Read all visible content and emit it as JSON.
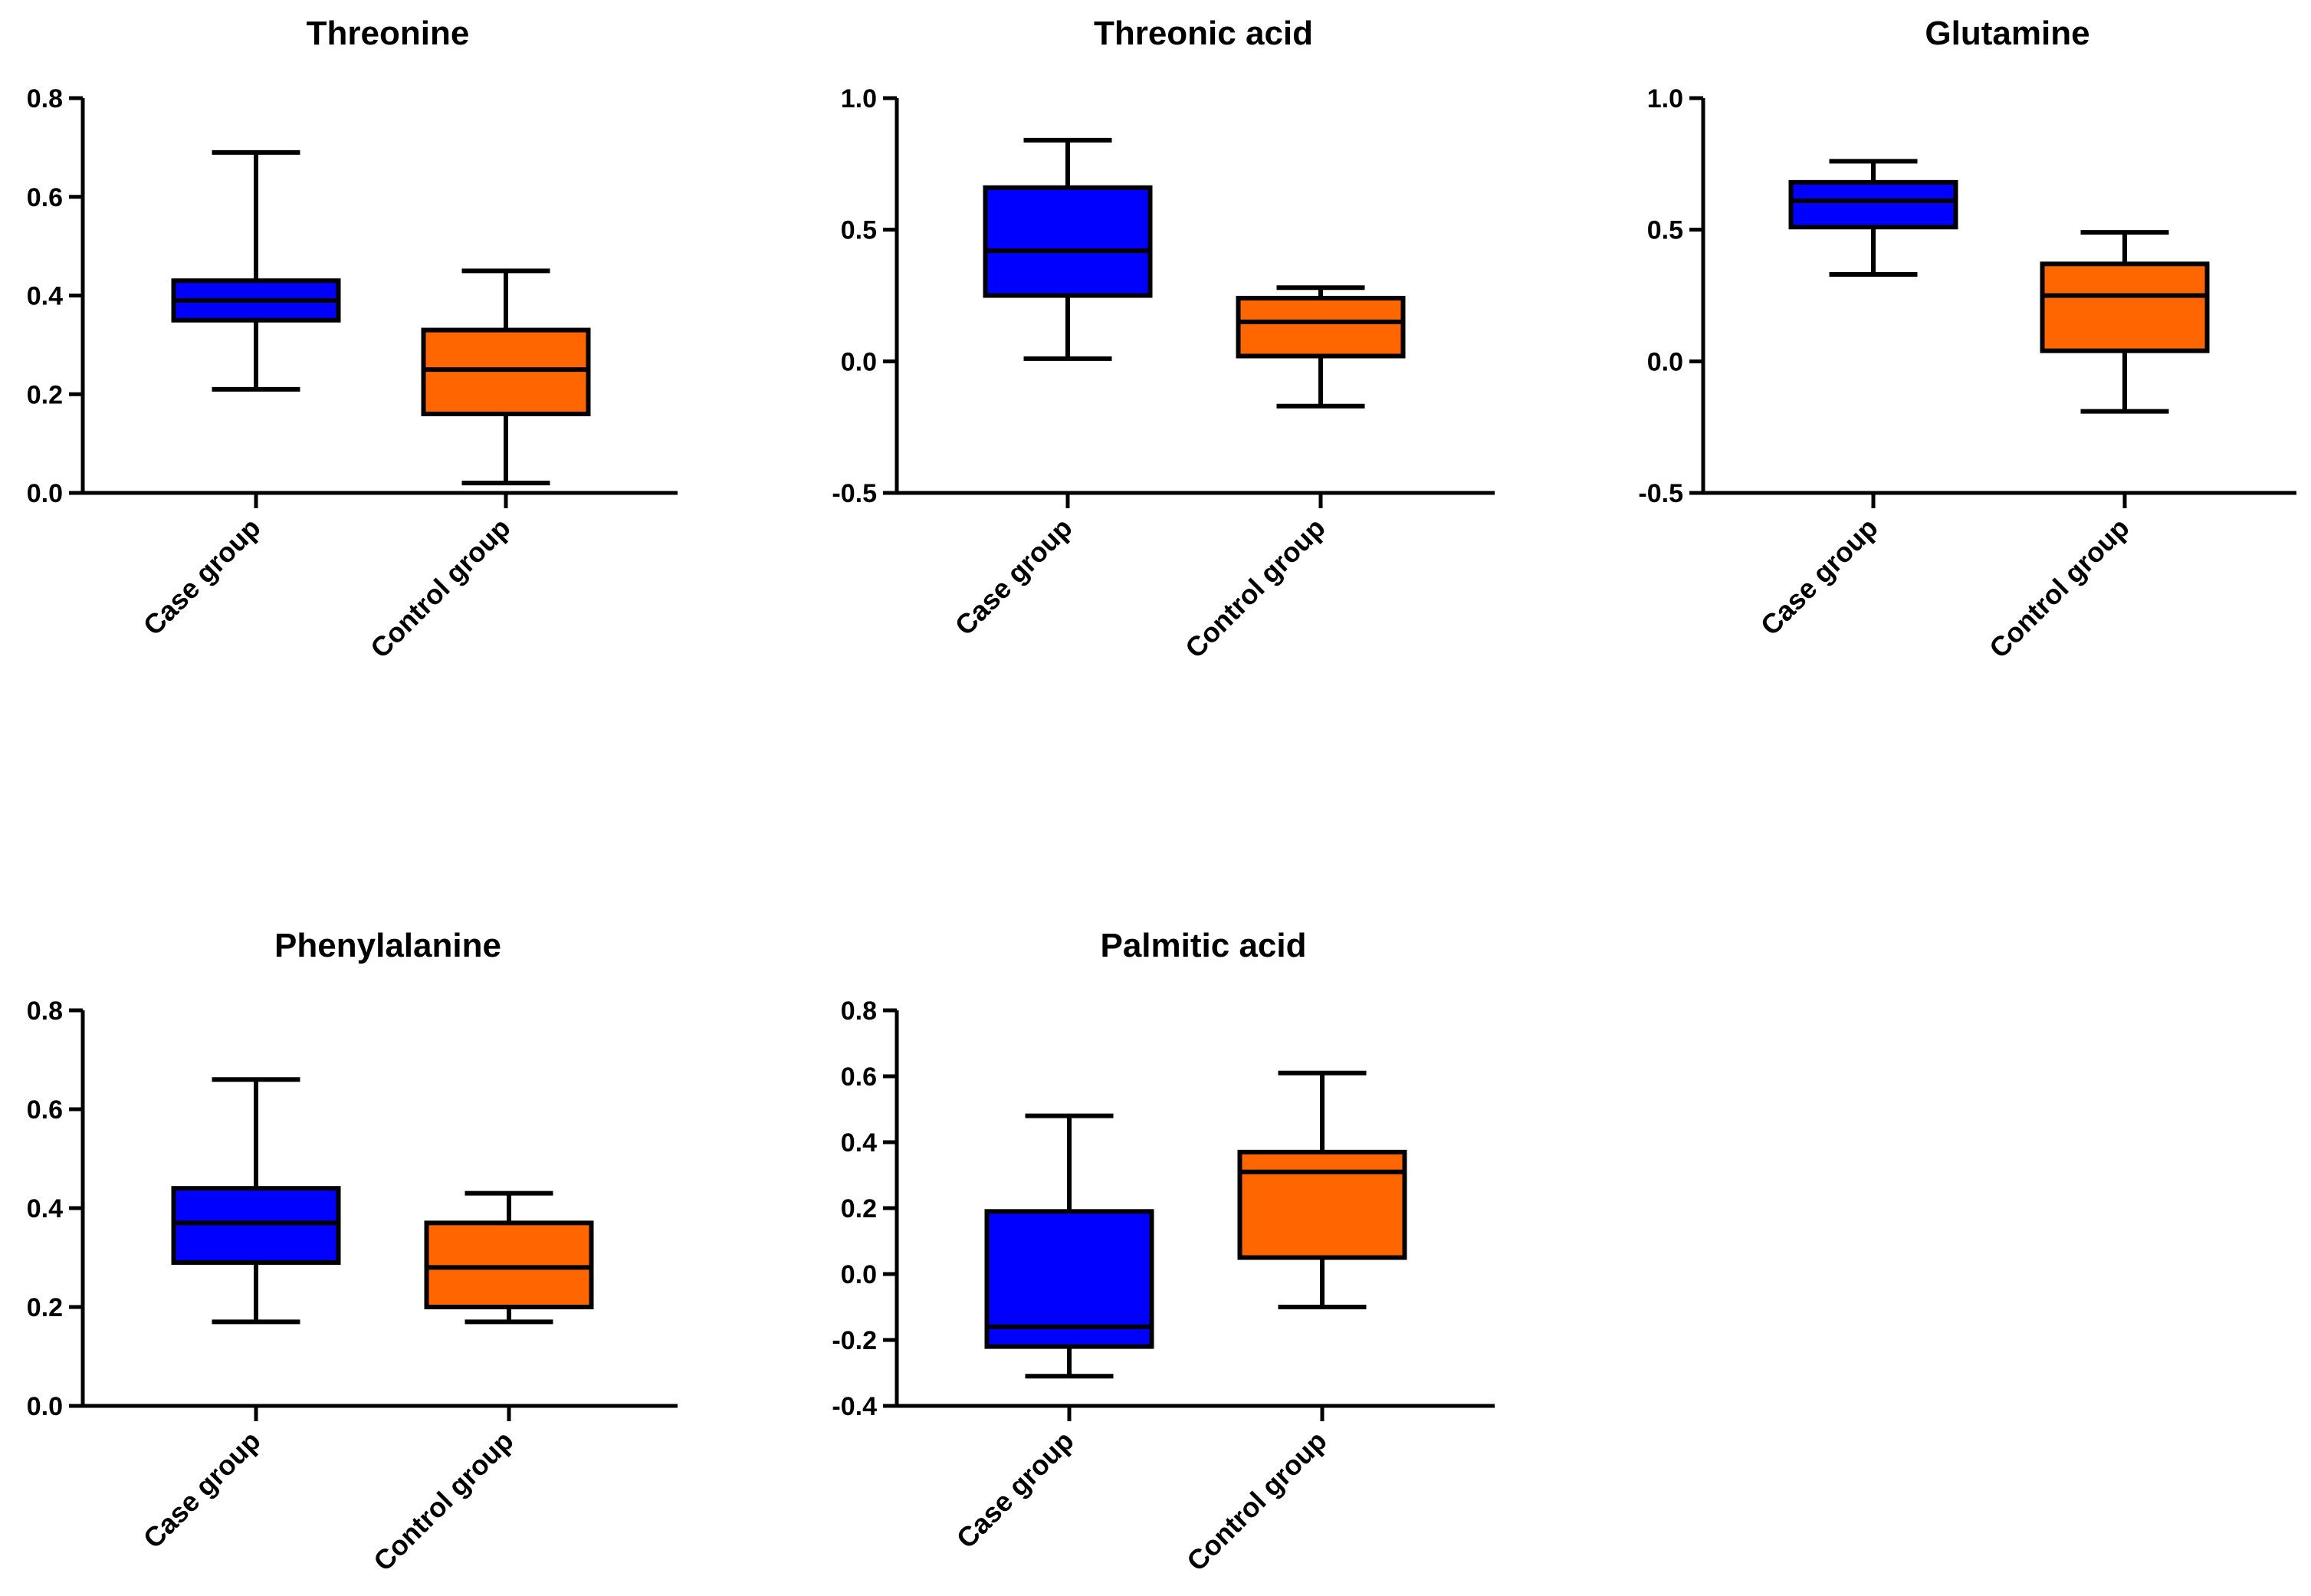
{
  "chart_data": [
    {
      "type": "boxplot",
      "title": "Threonine",
      "categories": [
        "Case group",
        "Control group"
      ],
      "ylim": [
        0,
        0.8
      ],
      "yticks": [
        0.0,
        0.2,
        0.4,
        0.6,
        0.8
      ],
      "ytick_labels": [
        "0.0",
        "0.2",
        "0.4",
        "0.6",
        "0.8"
      ],
      "boxes": [
        {
          "name": "Case group",
          "min": 0.21,
          "q1": 0.35,
          "median": 0.39,
          "q3": 0.43,
          "max": 0.69
        },
        {
          "name": "Control group",
          "min": 0.02,
          "q1": 0.16,
          "median": 0.25,
          "q3": 0.33,
          "max": 0.45
        }
      ]
    },
    {
      "type": "boxplot",
      "title": "Threonic acid",
      "categories": [
        "Case group",
        "Control group"
      ],
      "ylim": [
        -0.5,
        1.0
      ],
      "yticks": [
        -0.5,
        0.0,
        0.5,
        1.0
      ],
      "ytick_labels": [
        "-0.5",
        "0.0",
        "0.5",
        "1.0"
      ],
      "boxes": [
        {
          "name": "Case group",
          "min": 0.01,
          "q1": 0.25,
          "median": 0.42,
          "q3": 0.66,
          "max": 0.84
        },
        {
          "name": "Control group",
          "min": -0.17,
          "q1": 0.02,
          "median": 0.15,
          "q3": 0.24,
          "max": 0.28
        }
      ]
    },
    {
      "type": "boxplot",
      "title": "Glutamine",
      "categories": [
        "Case group",
        "Control group"
      ],
      "ylim": [
        -0.5,
        1.0
      ],
      "yticks": [
        -0.5,
        0.0,
        0.5,
        1.0
      ],
      "ytick_labels": [
        "-0.5",
        "0.0",
        "0.5",
        "1.0"
      ],
      "boxes": [
        {
          "name": "Case group",
          "min": 0.33,
          "q1": 0.51,
          "median": 0.61,
          "q3": 0.68,
          "max": 0.76
        },
        {
          "name": "Control group",
          "min": -0.19,
          "q1": 0.04,
          "median": 0.25,
          "q3": 0.37,
          "max": 0.49
        }
      ]
    },
    {
      "type": "boxplot",
      "title": "Phenylalanine",
      "categories": [
        "Case group",
        "Control group"
      ],
      "ylim": [
        0,
        0.8
      ],
      "yticks": [
        0.0,
        0.2,
        0.4,
        0.6,
        0.8
      ],
      "ytick_labels": [
        "0.0",
        "0.2",
        "0.4",
        "0.6",
        "0.8"
      ],
      "boxes": [
        {
          "name": "Case group",
          "min": 0.17,
          "q1": 0.29,
          "median": 0.37,
          "q3": 0.44,
          "max": 0.66
        },
        {
          "name": "Control group",
          "min": 0.17,
          "q1": 0.2,
          "median": 0.28,
          "q3": 0.37,
          "max": 0.43
        }
      ]
    },
    {
      "type": "boxplot",
      "title": "Palmitic acid",
      "categories": [
        "Case group",
        "Control group"
      ],
      "ylim": [
        -0.4,
        0.8
      ],
      "yticks": [
        -0.4,
        -0.2,
        0.0,
        0.2,
        0.4,
        0.6,
        0.8
      ],
      "ytick_labels": [
        "-0.4",
        "-0.2",
        "0.0",
        "0.2",
        "0.4",
        "0.6",
        "0.8"
      ],
      "boxes": [
        {
          "name": "Case group",
          "min": -0.31,
          "q1": -0.22,
          "median": -0.16,
          "q3": 0.19,
          "max": 0.48
        },
        {
          "name": "Control group",
          "min": -0.1,
          "q1": 0.05,
          "median": 0.31,
          "q3": 0.37,
          "max": 0.61
        }
      ]
    }
  ],
  "colors": {
    "case": "#0000ff",
    "control": "#ff6600",
    "line": "#000000"
  }
}
